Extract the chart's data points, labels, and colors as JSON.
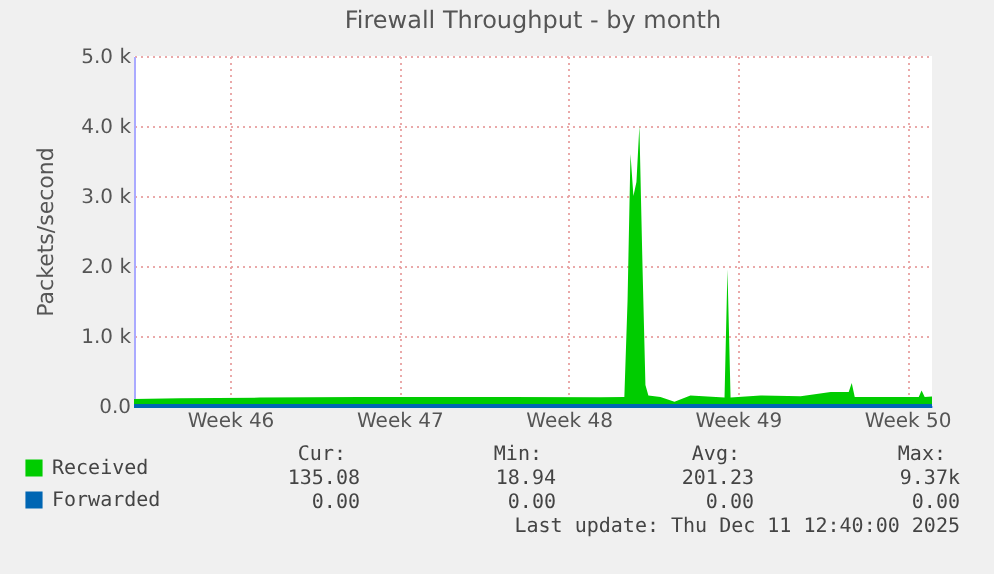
{
  "chart_data": {
    "type": "area",
    "title": "Firewall Throughput - by month",
    "ylabel": "Packets/second",
    "xlim": [
      "2025-11-08T12:40",
      "2025-12-11T12:40"
    ],
    "xticks": [
      {
        "value": "2025-11-12T12:00",
        "label": "Week 46"
      },
      {
        "value": "2025-11-19T12:00",
        "label": "Week 47"
      },
      {
        "value": "2025-11-26T12:00",
        "label": "Week 48"
      },
      {
        "value": "2025-12-03T12:00",
        "label": "Week 49"
      },
      {
        "value": "2025-12-10T12:00",
        "label": "Week 50"
      }
    ],
    "ylim": [
      0,
      5000
    ],
    "yticks": [
      {
        "value": 0,
        "label": "0.0"
      },
      {
        "value": 1000,
        "label": "1.0 k"
      },
      {
        "value": 2000,
        "label": "2.0 k"
      },
      {
        "value": 3000,
        "label": "3.0 k"
      },
      {
        "value": 4000,
        "label": "4.0 k"
      },
      {
        "value": 5000,
        "label": "5.0 k"
      }
    ],
    "grid": true,
    "legend": "bottom left",
    "series": [
      {
        "name": "Received",
        "color": "#00cc00",
        "x": [
          "2025-11-08T12:40",
          "2025-11-10T10:20",
          "2025-11-13T17:40",
          "2025-11-17T21:00",
          "2025-11-22T20:20",
          "2025-11-27T19:40",
          "2025-11-28T19:20",
          "2025-11-28T22:30",
          "2025-11-29T01:25",
          "2025-11-29T04:20",
          "2025-11-29T07:20",
          "2025-11-29T10:15",
          "2025-11-29T13:20",
          "2025-11-29T16:15",
          "2025-11-29T19:10",
          "2025-11-30T07:10",
          "2025-11-30T21:05",
          "2025-12-01T12:55",
          "2025-12-02T22:45",
          "2025-12-03T01:40",
          "2025-12-03T04:45",
          "2025-12-04T10:30",
          "2025-12-06T02:20",
          "2025-12-07T08:05",
          "2025-12-08T02:00",
          "2025-12-08T05:00",
          "2025-12-08T08:00",
          "2025-12-09T19:40",
          "2025-12-10T23:30",
          "2025-12-11T02:20",
          "2025-12-11T05:25",
          "2025-12-11T12:40"
        ],
        "values": [
          100,
          110,
          120,
          130,
          130,
          125,
          130,
          1500,
          3600,
          3000,
          3200,
          4000,
          2000,
          300,
          150,
          130,
          60,
          150,
          120,
          1950,
          120,
          150,
          140,
          200,
          200,
          330,
          130,
          130,
          130,
          220,
          130,
          135
        ]
      },
      {
        "name": "Forwarded",
        "type": "line",
        "color": "#0066b3",
        "x": [
          "2025-11-08T12:40",
          "2025-12-11T12:40"
        ],
        "values": [
          0,
          0
        ]
      }
    ],
    "annotations": [
      "Cur:",
      "Min:",
      "Avg:",
      "Max:",
      "135.08",
      "18.94",
      "201.23",
      "9.37k",
      "0.00",
      "0.00",
      "0.00",
      "0.00",
      "Last update: Thu Dec 11 12:40:00 2025"
    ]
  }
}
